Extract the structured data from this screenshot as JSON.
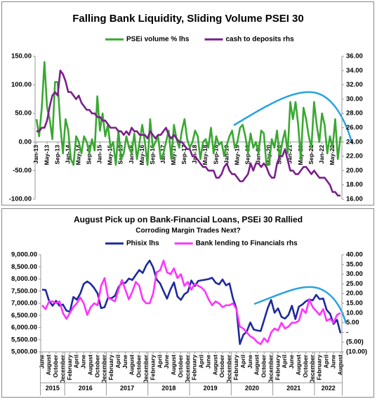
{
  "chart_data": [
    {
      "type": "line",
      "title": "Falling Bank Liquidity, Sliding Volume PSEI 30",
      "categories": [
        "Jan-13",
        null,
        null,
        null,
        "May-13",
        null,
        null,
        null,
        "Sep-13",
        null,
        null,
        null,
        "Jan-14",
        null,
        null,
        null,
        "May-14",
        null,
        null,
        null,
        "Sep-14",
        null,
        null,
        null,
        "Jan-15",
        null,
        null,
        null,
        "May-15",
        null,
        null,
        null,
        "Sep-15",
        null,
        null,
        null,
        "Jan-16",
        null,
        null,
        null,
        "May-16",
        null,
        null,
        null,
        "Sep-16",
        null,
        null,
        null,
        "Jan-17",
        null,
        null,
        null,
        "May-17",
        null,
        null,
        null,
        "Sep-17",
        null,
        null,
        null,
        "Jan-18",
        null,
        null,
        null,
        "May-18",
        null,
        null,
        null,
        "Sep-18",
        null,
        null,
        null,
        "Jan-19",
        null,
        null,
        null,
        "May-19",
        null,
        null,
        null,
        "Sep-19",
        null,
        null,
        null,
        "Jan-20",
        null,
        null,
        null,
        "May-20",
        null,
        null,
        null,
        "Sep-20",
        null,
        null,
        null,
        "Jan-21",
        null,
        null,
        null,
        "May-21",
        null,
        null,
        null,
        "Sep-21",
        null,
        null,
        null,
        "Jan-22",
        null,
        null,
        null,
        "May-22",
        null,
        null,
        null
      ],
      "series": [
        {
          "name": "PSEi volume % lhs",
          "color": "#3aa832",
          "axis": "y",
          "values": [
            40,
            10,
            60,
            140,
            60,
            40,
            5,
            105,
            105,
            30,
            -20,
            40,
            20,
            -30,
            -40,
            10,
            0,
            -20,
            10,
            0,
            -20,
            5,
            -15,
            80,
            20,
            50,
            10,
            30,
            -10,
            0,
            -40,
            20,
            -30,
            -20,
            10,
            -10,
            -20,
            15,
            -30,
            0,
            30,
            0,
            -40,
            40,
            -10,
            0,
            10,
            -30,
            -20,
            0,
            20,
            -30,
            30,
            5,
            -10,
            20,
            40,
            5,
            -10,
            0,
            20,
            10,
            -30,
            0,
            5,
            -10,
            25,
            -20,
            10,
            -5,
            0,
            -25,
            -5,
            10,
            20,
            -10,
            0,
            25,
            30,
            10,
            -20,
            15,
            -10,
            0,
            -20,
            20,
            15,
            -40,
            -40,
            5,
            -10,
            20,
            -30,
            0,
            20,
            -20,
            70,
            40,
            70,
            30,
            -30,
            60,
            40,
            10,
            -10,
            70,
            30,
            0,
            50,
            30,
            -20,
            10,
            -10,
            40,
            -30,
            10
          ]
        },
        {
          "name": "cash to deposits rhs",
          "color": "#7b1f8a",
          "axis": "y2",
          "values": [
            25.5,
            25.5,
            26,
            26,
            27,
            29,
            30.5,
            31,
            30.5,
            34,
            33.5,
            32.5,
            31,
            31,
            30.5,
            30,
            30.5,
            29.5,
            29,
            28.5,
            28.5,
            28,
            28,
            27.5,
            27.5,
            27,
            27,
            26.5,
            26,
            26,
            26,
            25.5,
            25.5,
            25,
            25.5,
            25,
            26,
            25.5,
            25.5,
            25,
            25,
            25,
            24.5,
            25.5,
            25,
            24.5,
            25,
            25,
            25.5,
            26,
            25,
            24.5,
            25,
            24.5,
            24,
            24,
            23.5,
            23,
            23,
            22,
            22,
            21.5,
            21,
            20.5,
            20.5,
            20,
            20,
            20,
            19,
            19,
            19.5,
            20.5,
            21,
            20,
            19.5,
            19.5,
            19,
            18.5,
            18.5,
            19,
            19.5,
            21,
            20,
            21,
            21,
            20.5,
            21,
            20.5,
            19.5,
            19,
            19,
            21,
            22,
            22,
            23,
            21.5,
            20,
            20,
            19.5,
            19.5,
            20,
            20.5,
            20.5,
            20,
            19.5,
            20,
            19.5,
            19,
            19,
            19,
            18.5,
            18,
            17,
            17,
            16.5,
            16.5
          ]
        }
      ],
      "ylim": [
        -100,
        150
      ],
      "yticks": [
        {
          "value": -100,
          "label": "-100.00"
        },
        {
          "value": -50,
          "label": "-50.00"
        },
        {
          "value": 0,
          "label": "0.00"
        },
        {
          "value": 50,
          "label": "50.00"
        },
        {
          "value": 100,
          "label": "100.00"
        },
        {
          "value": 150,
          "label": "150.00"
        }
      ],
      "y2lim": [
        16,
        36
      ],
      "y2ticks": [
        {
          "value": 16,
          "label": "16.00"
        },
        {
          "value": 18,
          "label": "18.00"
        },
        {
          "value": 20,
          "label": "20.00"
        },
        {
          "value": 22,
          "label": "22.00"
        },
        {
          "value": 24,
          "label": "24.00"
        },
        {
          "value": 26,
          "label": "26.00"
        },
        {
          "value": 28,
          "label": "28.00"
        },
        {
          "value": 30,
          "label": "30.00"
        },
        {
          "value": 32,
          "label": "32.00"
        },
        {
          "value": 34,
          "label": "34.00"
        },
        {
          "value": 36,
          "label": "36.00"
        }
      ],
      "grid": false
    },
    {
      "type": "line",
      "title": "August Pick up on Bank-Financial Loans, PSEi 30 Rallied",
      "subtitle": "Corroding Margin Trades Next?",
      "categories": [
        "June",
        null,
        "August",
        null,
        "October",
        null,
        "December",
        null,
        "February",
        null,
        "April",
        null,
        "June",
        null,
        "August",
        null,
        "October",
        null,
        "December",
        null,
        "February",
        null,
        "April",
        null,
        "June",
        null,
        "August",
        null,
        "October",
        null,
        "December",
        null,
        "February",
        null,
        "April",
        null,
        "June",
        null,
        "August",
        null,
        "October",
        null,
        "December",
        null,
        "February",
        null,
        "April",
        null,
        "June",
        null,
        "August",
        null,
        "October",
        null,
        "December",
        null,
        "February",
        null,
        "April",
        null,
        "June",
        null,
        "August",
        null,
        "October",
        null,
        "December",
        null,
        "February",
        null,
        "April",
        null,
        "June",
        null,
        "August",
        null,
        "October",
        null,
        "December",
        null,
        "February",
        null,
        "April",
        null,
        "June",
        null,
        "August"
      ],
      "x_groups": [
        "2015",
        "2016",
        "2017",
        "2018",
        "2019",
        "2020",
        "2021",
        "2022"
      ],
      "series": [
        {
          "name": "Phisix lhs",
          "color": "#1f2a9c",
          "axis": "y",
          "values": [
            7560,
            7550,
            7100,
            6900,
            7100,
            6900,
            6950,
            6700,
            6650,
            7260,
            7150,
            7400,
            7800,
            7900,
            7800,
            7630,
            7400,
            6800,
            6840,
            7230,
            7210,
            7310,
            7660,
            7840,
            7840,
            8020,
            7960,
            8170,
            8370,
            8250,
            8560,
            8760,
            8480,
            7980,
            7820,
            7500,
            7190,
            7570,
            7860,
            7280,
            7140,
            7370,
            7470,
            7940,
            7710,
            7920,
            7950,
            7970,
            8000,
            8050,
            7850,
            7780,
            7980,
            7740,
            7820,
            7200,
            6790,
            5320,
            5700,
            5840,
            6210,
            5920,
            5880,
            5860,
            6320,
            6790,
            7140,
            6610,
            6790,
            6440,
            6370,
            6520,
            6900,
            6350,
            6860,
            6950,
            7080,
            7160,
            7120,
            7350,
            7170,
            7200,
            6730,
            6570,
            6150,
            6320,
            5770
          ]
        },
        {
          "name": "Bank lending to Financials rhs",
          "color": "#ff33ff",
          "axis": "y2",
          "values": [
            14,
            12,
            16,
            16,
            15,
            16,
            10,
            7,
            10,
            13,
            15,
            18,
            15,
            9,
            13,
            15,
            14,
            24,
            28,
            18,
            17,
            16,
            22,
            27,
            22,
            17,
            21,
            26,
            24,
            17,
            15,
            15,
            20,
            31,
            32,
            37,
            31,
            30,
            33,
            28,
            30,
            24,
            26,
            22,
            25,
            24,
            23,
            21,
            17,
            14,
            16,
            15,
            13,
            14,
            14,
            15,
            12,
            3,
            2,
            0,
            -2,
            -3,
            -5,
            -6,
            -3,
            -5,
            0,
            2,
            1,
            5,
            2,
            3,
            5,
            5,
            6,
            12,
            10,
            17,
            13,
            11,
            9,
            12,
            6,
            7,
            5,
            9,
            10
          ]
        }
      ],
      "ylim": [
        5000,
        9000
      ],
      "yticks": [
        {
          "value": 5000,
          "label": "5,000.00"
        },
        {
          "value": 5500,
          "label": "5,500.00"
        },
        {
          "value": 6000,
          "label": "6,000.00"
        },
        {
          "value": 6500,
          "label": "6,500.00"
        },
        {
          "value": 7000,
          "label": "7,000.00"
        },
        {
          "value": 7500,
          "label": "7,500.00"
        },
        {
          "value": 8000,
          "label": "8,000.00"
        },
        {
          "value": 8500,
          "label": "8,500.00"
        },
        {
          "value": 9000,
          "label": "9,000.00"
        }
      ],
      "y2lim": [
        -10,
        40
      ],
      "y2ticks": [
        {
          "value": -10,
          "label": "(10.00)"
        },
        {
          "value": -5,
          "label": "(5.00)"
        },
        {
          "value": 0,
          "label": "-"
        },
        {
          "value": 5,
          "label": "5.00"
        },
        {
          "value": 10,
          "label": "10.00"
        },
        {
          "value": 15,
          "label": "15.00"
        },
        {
          "value": 20,
          "label": "20.00"
        },
        {
          "value": 25,
          "label": "25.00"
        },
        {
          "value": 30,
          "label": "30.00"
        },
        {
          "value": 35,
          "label": "35.00"
        },
        {
          "value": 40,
          "label": "40.00"
        }
      ],
      "grid": false
    }
  ]
}
